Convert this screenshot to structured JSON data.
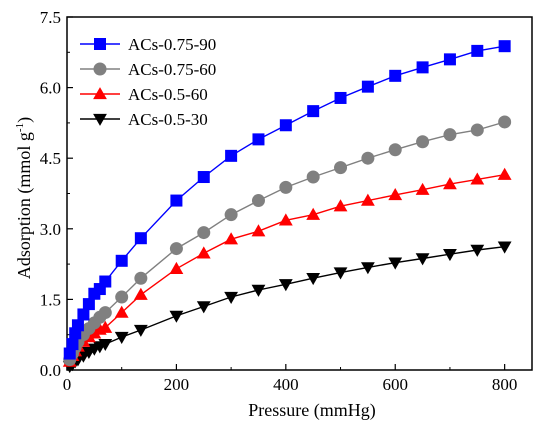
{
  "chart_data": {
    "type": "line",
    "xlabel": "Pressure (mmHg)",
    "ylabel_main": "Adsorption (mmol g",
    "ylabel_sup": "-1",
    "ylabel_close": ")",
    "xlim": [
      0,
      850
    ],
    "ylim": [
      0,
      7.5
    ],
    "xticks": [
      0,
      200,
      400,
      600,
      800
    ],
    "xtick_labels": [
      "0",
      "200",
      "400",
      "600",
      "800"
    ],
    "yticks": [
      0,
      1.5,
      3.0,
      4.5,
      6.0,
      7.5
    ],
    "ytick_labels": [
      "0.0",
      "1.5",
      "3.0",
      "4.5",
      "6.0",
      "7.5"
    ],
    "grid": false,
    "legend_position": "top-left",
    "series": [
      {
        "name": "ACs-0.75-90",
        "color": "#0000ff",
        "marker": "square",
        "x": [
          5,
          10,
          15,
          20,
          30,
          40,
          50,
          60,
          70,
          100,
          135,
          200,
          250,
          300,
          350,
          400,
          450,
          500,
          550,
          600,
          650,
          700,
          750,
          800
        ],
        "y": [
          0.35,
          0.55,
          0.78,
          0.95,
          1.18,
          1.4,
          1.62,
          1.72,
          1.88,
          2.32,
          2.8,
          3.6,
          4.1,
          4.55,
          4.9,
          5.2,
          5.5,
          5.78,
          6.02,
          6.25,
          6.43,
          6.6,
          6.78,
          6.88
        ]
      },
      {
        "name": "ACs-0.75-60",
        "color": "#808080",
        "marker": "circle",
        "x": [
          5,
          10,
          15,
          20,
          30,
          40,
          50,
          60,
          70,
          100,
          135,
          200,
          250,
          300,
          350,
          400,
          450,
          500,
          550,
          600,
          650,
          700,
          750,
          800
        ],
        "y": [
          0.22,
          0.35,
          0.48,
          0.6,
          0.75,
          0.88,
          1.0,
          1.12,
          1.22,
          1.55,
          1.95,
          2.58,
          2.92,
          3.3,
          3.6,
          3.88,
          4.1,
          4.3,
          4.5,
          4.68,
          4.85,
          5.0,
          5.1,
          5.27
        ]
      },
      {
        "name": "ACs-0.5-60",
        "color": "#ff0000",
        "marker": "triangle-up",
        "x": [
          5,
          10,
          15,
          20,
          30,
          40,
          50,
          60,
          70,
          100,
          135,
          200,
          250,
          300,
          350,
          400,
          450,
          500,
          550,
          600,
          650,
          700,
          750,
          800
        ],
        "y": [
          0.18,
          0.3,
          0.4,
          0.5,
          0.6,
          0.7,
          0.78,
          0.86,
          0.9,
          1.22,
          1.6,
          2.15,
          2.48,
          2.78,
          2.95,
          3.18,
          3.3,
          3.48,
          3.6,
          3.72,
          3.83,
          3.95,
          4.05,
          4.15
        ]
      },
      {
        "name": "ACs-0.5-30",
        "color": "#000000",
        "marker": "triangle-down",
        "x": [
          5,
          10,
          15,
          20,
          30,
          40,
          50,
          60,
          70,
          100,
          135,
          200,
          250,
          300,
          350,
          400,
          450,
          500,
          550,
          600,
          650,
          700,
          750,
          800
        ],
        "y": [
          0.08,
          0.12,
          0.18,
          0.22,
          0.3,
          0.38,
          0.45,
          0.5,
          0.55,
          0.7,
          0.85,
          1.15,
          1.35,
          1.55,
          1.7,
          1.82,
          1.95,
          2.07,
          2.18,
          2.28,
          2.37,
          2.46,
          2.55,
          2.62
        ]
      }
    ]
  }
}
